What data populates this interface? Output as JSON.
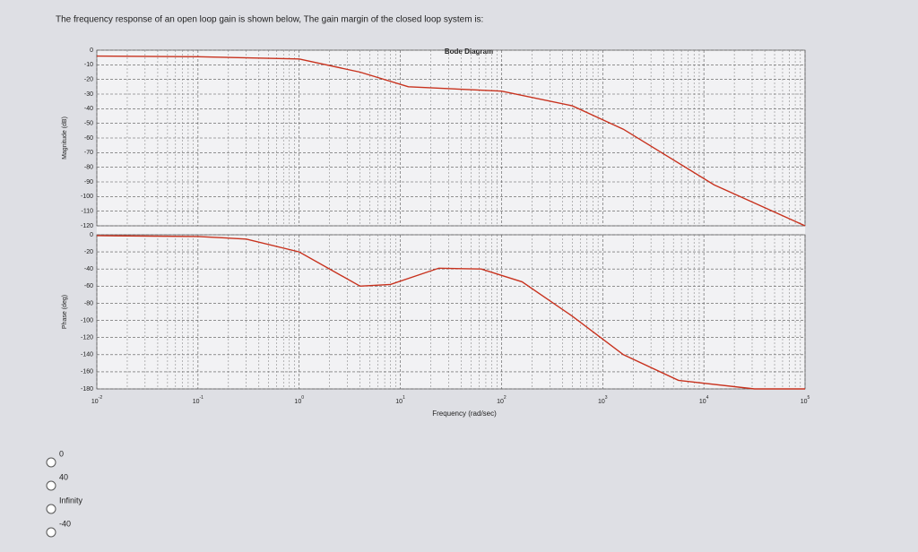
{
  "question": "The frequency response of an open loop gain is shown below, The gain margin of the closed loop system is:",
  "chart_data": [
    {
      "type": "line",
      "title": "Bode Diagram",
      "ylabel": "Magnitude (dB)",
      "xscale": "log",
      "grid": true,
      "xlim": [
        0.01,
        100000
      ],
      "xticks": [
        0.01,
        0.1,
        1,
        10,
        100,
        1000,
        10000,
        100000
      ],
      "ylim": [
        -120,
        0
      ],
      "yticks": [
        0,
        -10,
        -20,
        -30,
        -40,
        -50,
        -60,
        -70,
        -80,
        -90,
        -100,
        -110,
        -120
      ],
      "x": [
        0.01,
        0.1,
        1,
        4,
        12,
        100,
        500,
        1600,
        12600,
        100000
      ],
      "series": [
        {
          "name": "Magnitude",
          "color": "#c8321e",
          "values": [
            -4,
            -4.5,
            -6,
            -15,
            -25,
            -28,
            -38,
            -54,
            -92,
            -120
          ]
        }
      ]
    },
    {
      "type": "line",
      "ylabel": "Phase (deg)",
      "xlabel": "Frequency (rad/sec)",
      "xscale": "log",
      "grid": true,
      "xlim": [
        0.01,
        100000
      ],
      "xticks": [
        {
          "value": 0.01,
          "label": "10",
          "exponent": "-2"
        },
        {
          "value": 0.1,
          "label": "10",
          "exponent": "-1"
        },
        {
          "value": 1,
          "label": "10",
          "exponent": "0"
        },
        {
          "value": 10,
          "label": "10",
          "exponent": "1"
        },
        {
          "value": 100,
          "label": "10",
          "exponent": "2"
        },
        {
          "value": 1000,
          "label": "10",
          "exponent": "3"
        },
        {
          "value": 10000,
          "label": "10",
          "exponent": "4"
        },
        {
          "value": 100000,
          "label": "10",
          "exponent": "5"
        }
      ],
      "ylim": [
        -180,
        0
      ],
      "yticks": [
        0,
        -20,
        -40,
        -60,
        -80,
        -100,
        -120,
        -140,
        -160,
        -180
      ],
      "x": [
        0.01,
        0.1,
        0.3,
        1,
        4,
        8,
        24,
        63,
        160,
        500,
        1600,
        5600,
        31600,
        100000
      ],
      "series": [
        {
          "name": "Phase",
          "color": "#c8321e",
          "values": [
            -1,
            -2,
            -5,
            -20,
            -60,
            -58,
            -39,
            -40,
            -55,
            -95,
            -140,
            -170,
            -180,
            -180
          ]
        }
      ]
    }
  ],
  "options": [
    "0",
    "40",
    "Infinity",
    "-40"
  ]
}
